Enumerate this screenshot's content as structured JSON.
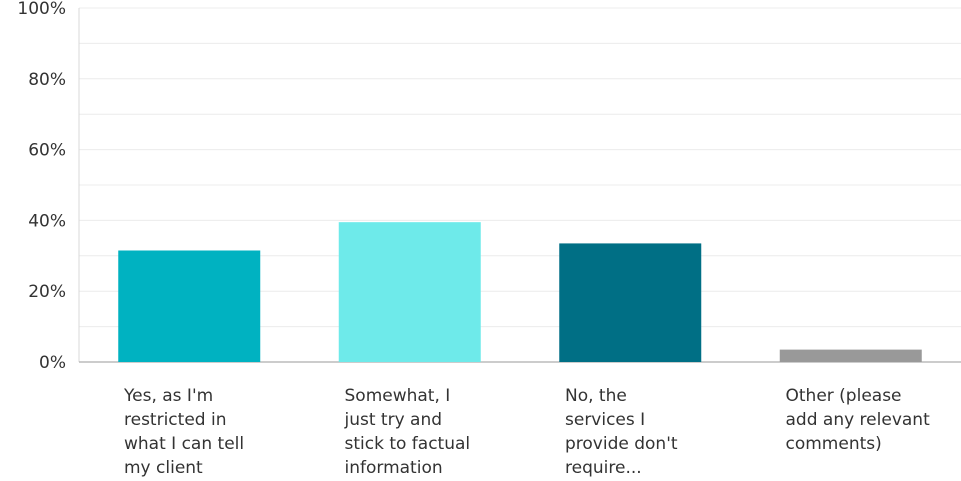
{
  "chart_data": {
    "type": "bar",
    "categories": [
      [
        "Yes, as I'm",
        "restricted in",
        "what I can tell",
        "my client"
      ],
      [
        "Somewhat, I",
        "just try and",
        "stick to factual",
        "information"
      ],
      [
        "No, the",
        "services I",
        "provide don't",
        "require..."
      ],
      [
        "Other (please",
        "add any relevant",
        "comments)"
      ]
    ],
    "values": [
      31.5,
      39.5,
      33.5,
      3.5
    ],
    "bar_colors": [
      "#00b2c1",
      "#6eeaea",
      "#006f85",
      "#999999"
    ],
    "yticks": [
      "0%",
      "20%",
      "40%",
      "60%",
      "80%",
      "100%"
    ],
    "ylim": [
      0,
      100
    ],
    "grid": true,
    "legend": "none"
  }
}
